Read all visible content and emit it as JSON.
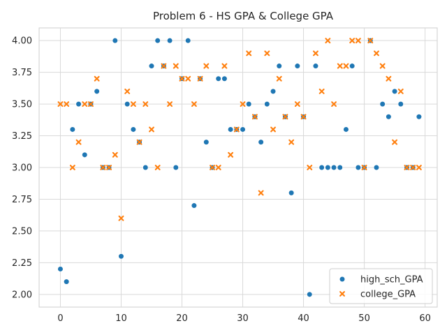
{
  "chart_data": {
    "type": "scatter",
    "title": "Problem 6 - HS GPA & College GPA",
    "xlabel": "",
    "ylabel": "",
    "xlim": [
      -3.5,
      62
    ],
    "ylim": [
      1.9,
      4.1
    ],
    "xticks": [
      0,
      10,
      20,
      30,
      40,
      50,
      60
    ],
    "yticks": [
      2.0,
      2.25,
      2.5,
      2.75,
      3.0,
      3.25,
      3.5,
      3.75,
      4.0
    ],
    "ytick_labels": [
      "2.00",
      "2.25",
      "2.50",
      "2.75",
      "3.00",
      "3.25",
      "3.50",
      "3.75",
      "4.00"
    ],
    "grid": true,
    "legend_position": "lower-right",
    "x": [
      0,
      1,
      2,
      3,
      4,
      5,
      6,
      7,
      8,
      9,
      10,
      11,
      12,
      13,
      14,
      15,
      16,
      17,
      18,
      19,
      20,
      21,
      22,
      23,
      24,
      25,
      26,
      27,
      28,
      29,
      30,
      31,
      32,
      33,
      34,
      35,
      36,
      37,
      38,
      39,
      40,
      41,
      42,
      43,
      44,
      45,
      46,
      47,
      48,
      49,
      50,
      51,
      52,
      53,
      54,
      55,
      56,
      57,
      58,
      59
    ],
    "series": [
      {
        "name": "high_sch_GPA",
        "color": "#1f77b4",
        "marker": "circle",
        "values": [
          2.2,
          2.1,
          3.3,
          3.5,
          3.1,
          3.5,
          3.6,
          3.0,
          3.0,
          4.0,
          2.3,
          3.5,
          3.3,
          3.2,
          3.0,
          3.8,
          4.0,
          3.8,
          4.0,
          3.0,
          3.7,
          4.0,
          2.7,
          3.7,
          3.2,
          3.0,
          3.7,
          3.7,
          3.3,
          3.3,
          3.3,
          3.5,
          3.4,
          3.2,
          3.5,
          3.6,
          3.8,
          3.4,
          2.8,
          3.8,
          3.4,
          2.0,
          3.8,
          3.0,
          3.0,
          3.0,
          3.0,
          3.3,
          3.8,
          3.0,
          3.0,
          4.0,
          3.0,
          3.5,
          3.4,
          3.6,
          3.5,
          3.0,
          3.0,
          3.4
        ]
      },
      {
        "name": "college_GPA",
        "color": "#ff7f0e",
        "marker": "x",
        "values": [
          3.5,
          3.5,
          3.0,
          3.2,
          3.5,
          3.5,
          3.7,
          3.0,
          3.0,
          3.1,
          2.6,
          3.6,
          3.5,
          3.2,
          3.5,
          3.3,
          3.0,
          3.8,
          3.5,
          3.8,
          3.7,
          3.7,
          3.5,
          3.7,
          3.8,
          3.0,
          3.0,
          3.8,
          3.1,
          3.3,
          3.5,
          3.9,
          3.4,
          2.8,
          3.9,
          3.3,
          3.7,
          3.4,
          3.2,
          3.5,
          3.4,
          3.0,
          3.9,
          3.6,
          4.0,
          3.5,
          3.8,
          3.8,
          4.0,
          4.0,
          3.0,
          4.0,
          3.9,
          3.8,
          3.7,
          3.2,
          3.6,
          3.0,
          3.0,
          3.0
        ]
      }
    ]
  }
}
